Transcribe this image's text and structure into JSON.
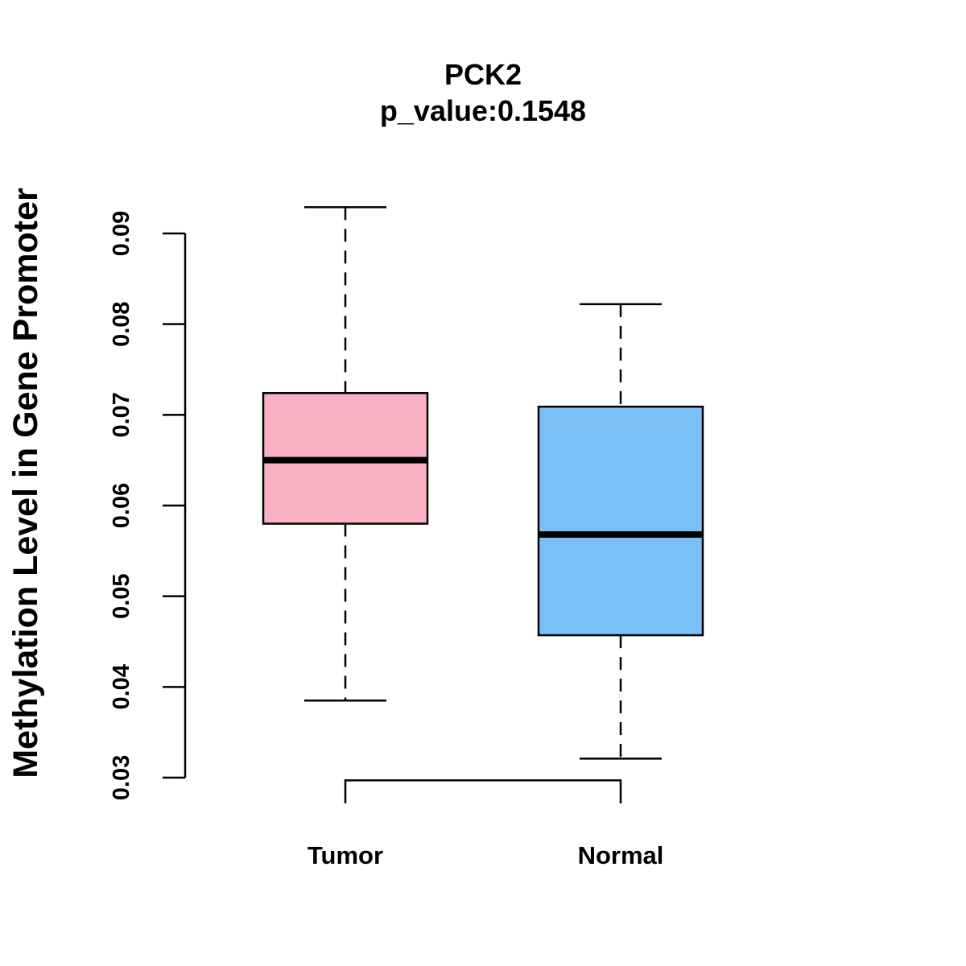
{
  "chart_data": {
    "type": "boxplot",
    "title": "PCK2",
    "subtitle": "p_value:0.1548",
    "xlabel": "",
    "ylabel": "Methylation Level in Gene Promoter",
    "ylim": [
      0.03,
      0.09
    ],
    "yticks": [
      "0.03",
      "0.04",
      "0.05",
      "0.06",
      "0.07",
      "0.08",
      "0.09"
    ],
    "grid": false,
    "categories": [
      "Tumor",
      "Normal"
    ],
    "boxes": [
      {
        "name": "Tumor",
        "whisker_low": 0.0385,
        "q1": 0.058,
        "median": 0.065,
        "q3": 0.0724,
        "whisker_high": 0.0929,
        "color": "#FBB1C4"
      },
      {
        "name": "Normal",
        "whisker_low": 0.0321,
        "q1": 0.0457,
        "median": 0.0568,
        "q3": 0.0709,
        "whisker_high": 0.0822,
        "color": "#79C0F7"
      }
    ],
    "comparison_bracket": {
      "between": [
        "Tumor",
        "Normal"
      ],
      "value": 0.0297
    }
  }
}
